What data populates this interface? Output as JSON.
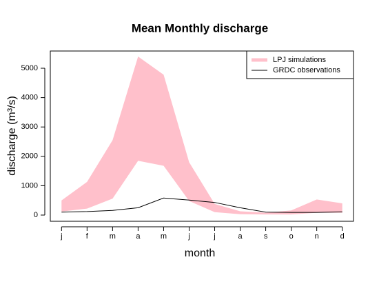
{
  "chart_data": {
    "type": "line",
    "title": "Mean Monthly discharge",
    "x_label": "month",
    "y_label": "discharge (m³/s)",
    "categories": [
      "j",
      "f",
      "m",
      "a",
      "m",
      "j",
      "j",
      "a",
      "s",
      "o",
      "n",
      "d"
    ],
    "series": [
      {
        "name": "LPJ simulations",
        "color": "#ffc0cb",
        "low": [
          120,
          220,
          560,
          1850,
          1680,
          480,
          100,
          30,
          20,
          20,
          80,
          80
        ],
        "high": [
          500,
          1130,
          2550,
          5400,
          4780,
          1800,
          380,
          130,
          80,
          160,
          530,
          400
        ]
      },
      {
        "name": "GRDC observations",
        "color": "#000000",
        "values": [
          100,
          120,
          160,
          250,
          580,
          510,
          430,
          250,
          100,
          90,
          90,
          110
        ]
      }
    ],
    "ylim": [
      -211,
      5587
    ],
    "yticks": [
      0,
      1000,
      2000,
      3000,
      4000,
      5000
    ],
    "legend": "top-right"
  }
}
